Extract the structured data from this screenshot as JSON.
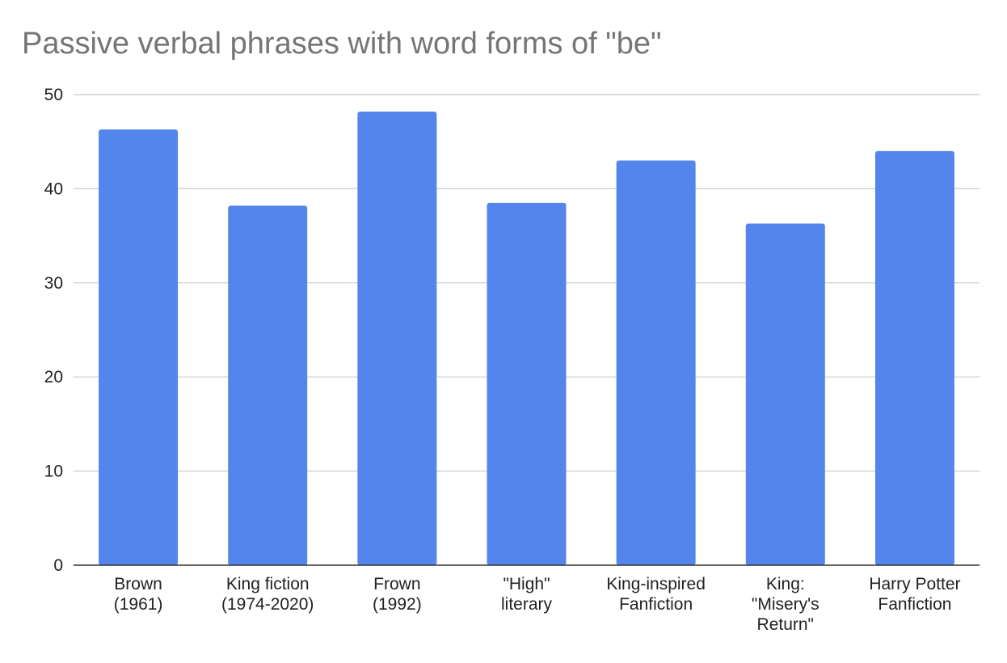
{
  "chart_data": {
    "type": "bar",
    "title": "Passive verbal phrases with word forms of \"be\"",
    "xlabel": "",
    "ylabel": "",
    "categories": [
      [
        "Brown",
        "(1961)"
      ],
      [
        "King fiction",
        "(1974-2020)"
      ],
      [
        "Frown",
        "(1992)"
      ],
      [
        "\"High\"",
        "literary"
      ],
      [
        "King-inspired",
        "Fanfiction"
      ],
      [
        "King:",
        "\"Misery's",
        "Return\""
      ],
      [
        "Harry Potter",
        "Fanfiction"
      ]
    ],
    "values": [
      46.3,
      38.2,
      48.2,
      38.5,
      43.0,
      36.3,
      44.0
    ],
    "ylim": [
      0,
      50
    ],
    "yticks": [
      0,
      10,
      20,
      30,
      40,
      50
    ],
    "grid": true,
    "legend": "none",
    "colors": {
      "bar": "#5385ec",
      "grid": "#cccccc",
      "axis": "#333333",
      "title": "#757575"
    }
  }
}
